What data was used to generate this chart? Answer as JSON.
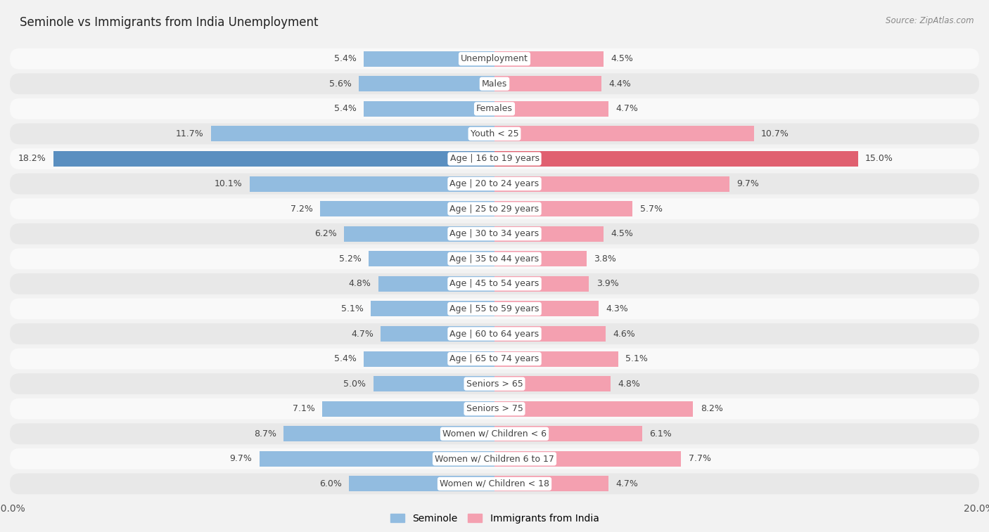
{
  "title": "Seminole vs Immigrants from India Unemployment",
  "source": "Source: ZipAtlas.com",
  "categories": [
    "Unemployment",
    "Males",
    "Females",
    "Youth < 25",
    "Age | 16 to 19 years",
    "Age | 20 to 24 years",
    "Age | 25 to 29 years",
    "Age | 30 to 34 years",
    "Age | 35 to 44 years",
    "Age | 45 to 54 years",
    "Age | 55 to 59 years",
    "Age | 60 to 64 years",
    "Age | 65 to 74 years",
    "Seniors > 65",
    "Seniors > 75",
    "Women w/ Children < 6",
    "Women w/ Children 6 to 17",
    "Women w/ Children < 18"
  ],
  "seminole": [
    5.4,
    5.6,
    5.4,
    11.7,
    18.2,
    10.1,
    7.2,
    6.2,
    5.2,
    4.8,
    5.1,
    4.7,
    5.4,
    5.0,
    7.1,
    8.7,
    9.7,
    6.0
  ],
  "india": [
    4.5,
    4.4,
    4.7,
    10.7,
    15.0,
    9.7,
    5.7,
    4.5,
    3.8,
    3.9,
    4.3,
    4.6,
    5.1,
    4.8,
    8.2,
    6.1,
    7.7,
    4.7
  ],
  "seminole_color": "#92bce0",
  "india_color": "#f4a0b0",
  "seminole_highlight": "#5a8fc0",
  "india_highlight": "#e06070",
  "background_color": "#f2f2f2",
  "row_color_even": "#f9f9f9",
  "row_color_odd": "#e8e8e8",
  "max_val": 20.0,
  "label_fontsize": 9.0,
  "title_fontsize": 12,
  "source_fontsize": 8.5,
  "value_fontsize": 9.0
}
